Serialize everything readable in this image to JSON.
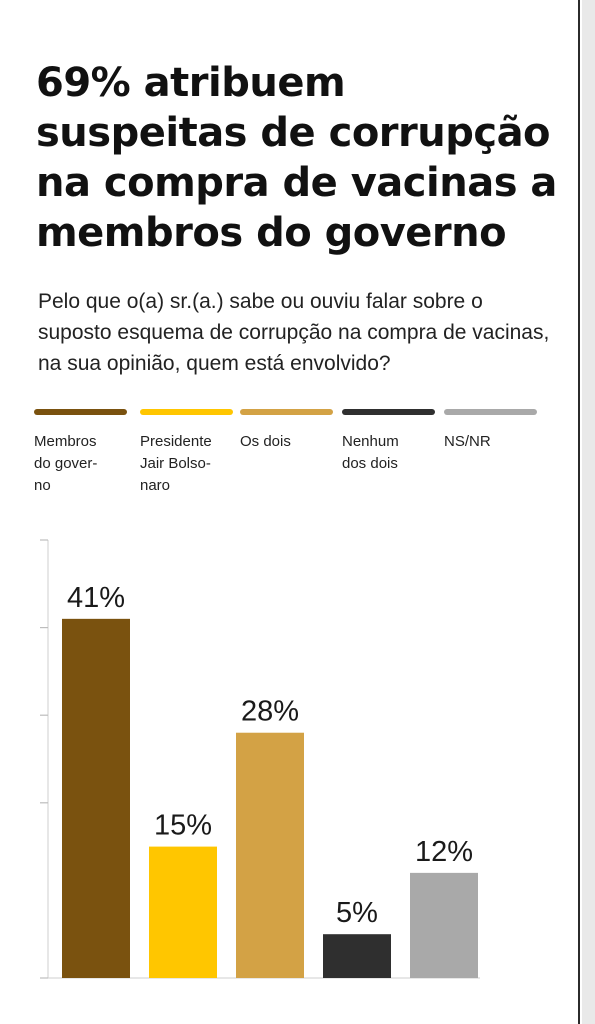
{
  "title": "69% atribuem suspeitas de corrupção na compra de vacinas a membros do governo",
  "question": "Pelo que o(a) sr.(a.) sabe ou ouviu falar sobre o suposto esquema de corrupção na compra de vacinas, na sua opinião, quem está envolvido?",
  "legend": [
    {
      "label": "Membros\ndo gover-\nno",
      "color": "#7a520f"
    },
    {
      "label": "Presidente\nJair Bolso-\nnaro",
      "color": "#ffc600"
    },
    {
      "label": "Os dois",
      "color": "#d3a245"
    },
    {
      "label": "Nenhum\ndos dois",
      "color": "#2f2f2f"
    },
    {
      "label": "NS/NR",
      "color": "#a9a9a9"
    }
  ],
  "chart_data": {
    "type": "bar",
    "categories": [
      "Membros do governo",
      "Presidente Jair Bolsonaro",
      "Os dois",
      "Nenhum dos dois",
      "NS/NR"
    ],
    "values": [
      41,
      15,
      28,
      5,
      12
    ],
    "value_labels": [
      "41%",
      "15%",
      "28%",
      "5%",
      "12%"
    ],
    "colors": [
      "#7a520f",
      "#ffc600",
      "#d3a245",
      "#2f2f2f",
      "#a9a9a9"
    ],
    "ylim": [
      0,
      50
    ],
    "grid": false,
    "legend_placement": "top"
  }
}
